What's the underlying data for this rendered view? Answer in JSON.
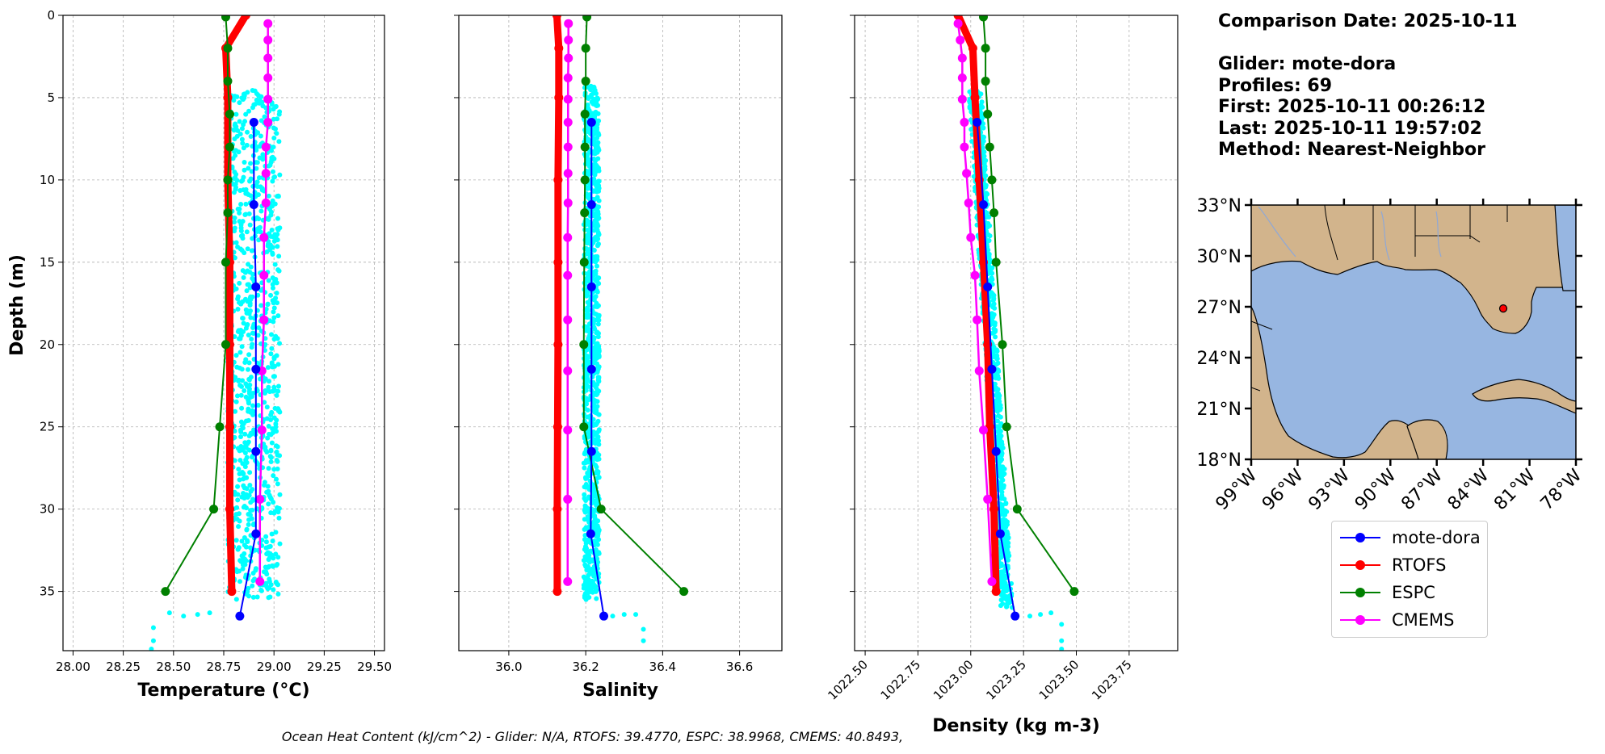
{
  "info": {
    "comparison_date": "Comparison Date: 2025-10-11",
    "glider": "Glider: mote-dora",
    "profiles": "Profiles: 69",
    "first": "First: 2025-10-11 00:26:12",
    "last": "Last: 2025-10-11 19:57:02",
    "method": "Method: Nearest-Neighbor"
  },
  "footer_text": "Ocean Heat Content (kJ/cm^2) - Glider: N/A,  RTOFS: 39.4770,  ESPC: 38.9968,  CMEMS: 40.8493,",
  "colors": {
    "glider": "#0000ff",
    "rtofs": "#ff0000",
    "espc": "#008000",
    "cmems": "#ff00ff",
    "scatter": "#00ffff",
    "land": "#d2b48c",
    "ocean": "#97b6e1"
  },
  "legend": [
    {
      "label": "mote-dora",
      "color": "#0000ff"
    },
    {
      "label": "RTOFS",
      "color": "#ff0000"
    },
    {
      "label": "ESPC",
      "color": "#008000"
    },
    {
      "label": "CMEMS",
      "color": "#ff00ff"
    }
  ],
  "chart_data": [
    {
      "type": "line",
      "xlabel": "Temperature (°C)",
      "ylabel": "Depth (m)",
      "xlim": [
        27.95,
        29.55
      ],
      "ylim": [
        38.6,
        0
      ],
      "xticks": [
        "28.00",
        "28.25",
        "28.50",
        "28.75",
        "29.00",
        "29.25",
        "29.50"
      ],
      "yticks": [
        "0",
        "5",
        "10",
        "15",
        "20",
        "25",
        "30",
        "35"
      ],
      "grid": true,
      "scatter": {
        "name": "mote-dora (raw)",
        "depth_range": [
          4.5,
          35.5
        ],
        "x_range": [
          28.77,
          29.03
        ],
        "tail": [
          [
            28.4,
            37.2
          ],
          [
            28.4,
            38.0
          ],
          [
            28.39,
            38.5
          ],
          [
            28.48,
            36.3
          ],
          [
            28.55,
            36.5
          ],
          [
            28.62,
            36.4
          ],
          [
            28.68,
            36.3
          ]
        ]
      },
      "series": [
        {
          "name": "mote-dora",
          "points": [
            [
              28.9,
              6.5
            ],
            [
              28.9,
              11.5
            ],
            [
              28.91,
              16.5
            ],
            [
              28.91,
              21.5
            ],
            [
              28.91,
              26.5
            ],
            [
              28.91,
              31.5
            ],
            [
              28.83,
              36.5
            ]
          ]
        },
        {
          "name": "RTOFS",
          "points": [
            [
              28.86,
              0.0
            ],
            [
              28.76,
              2.0
            ],
            [
              28.77,
              5.0
            ],
            [
              28.77,
              10.0
            ],
            [
              28.78,
              15.0
            ],
            [
              28.78,
              20.0
            ],
            [
              28.78,
              25.0
            ],
            [
              28.78,
              30.0
            ],
            [
              28.79,
              35.0
            ]
          ]
        },
        {
          "name": "ESPC",
          "points": [
            [
              28.76,
              0.1
            ],
            [
              28.77,
              2.0
            ],
            [
              28.77,
              4.0
            ],
            [
              28.78,
              6.0
            ],
            [
              28.78,
              8.0
            ],
            [
              28.77,
              10.0
            ],
            [
              28.77,
              12.0
            ],
            [
              28.76,
              15.0
            ],
            [
              28.76,
              20.0
            ],
            [
              28.73,
              25.0
            ],
            [
              28.7,
              30.0
            ],
            [
              28.46,
              35.0
            ]
          ]
        },
        {
          "name": "CMEMS",
          "points": [
            [
              28.97,
              0.5
            ],
            [
              28.97,
              1.5
            ],
            [
              28.97,
              2.6
            ],
            [
              28.97,
              3.8
            ],
            [
              28.97,
              5.1
            ],
            [
              28.97,
              6.5
            ],
            [
              28.96,
              8.0
            ],
            [
              28.96,
              9.6
            ],
            [
              28.96,
              11.4
            ],
            [
              28.95,
              13.5
            ],
            [
              28.95,
              15.8
            ],
            [
              28.95,
              18.5
            ],
            [
              28.94,
              21.6
            ],
            [
              28.94,
              25.2
            ],
            [
              28.93,
              29.4
            ],
            [
              28.93,
              34.4
            ]
          ]
        }
      ]
    },
    {
      "type": "line",
      "xlabel": "Salinity",
      "ylabel": "",
      "xlim": [
        35.87,
        36.71
      ],
      "ylim": [
        38.6,
        0
      ],
      "xticks": [
        "36.0",
        "36.2",
        "36.4",
        "36.6"
      ],
      "yticks": [
        "0",
        "5",
        "10",
        "15",
        "20",
        "25",
        "30",
        "35"
      ],
      "grid": true,
      "scatter": {
        "name": "mote-dora (raw)",
        "depth_range": [
          4.3,
          35.5
        ],
        "x_range": [
          36.195,
          36.235
        ],
        "tail": [
          [
            36.33,
            36.4
          ],
          [
            36.35,
            37.3
          ],
          [
            36.35,
            38.0
          ],
          [
            36.27,
            36.5
          ],
          [
            36.3,
            36.4
          ]
        ]
      },
      "series": [
        {
          "name": "mote-dora",
          "points": [
            [
              36.215,
              6.5
            ],
            [
              36.215,
              11.5
            ],
            [
              36.215,
              16.5
            ],
            [
              36.215,
              21.5
            ],
            [
              36.215,
              26.5
            ],
            [
              36.213,
              31.5
            ],
            [
              36.247,
              36.5
            ]
          ]
        },
        {
          "name": "RTOFS",
          "points": [
            [
              36.125,
              0.0
            ],
            [
              36.13,
              2.0
            ],
            [
              36.13,
              5.0
            ],
            [
              36.128,
              10.0
            ],
            [
              36.128,
              15.0
            ],
            [
              36.128,
              20.0
            ],
            [
              36.127,
              25.0
            ],
            [
              36.126,
              30.0
            ],
            [
              36.126,
              35.0
            ]
          ]
        },
        {
          "name": "ESPC",
          "points": [
            [
              36.203,
              0.1
            ],
            [
              36.2,
              2.0
            ],
            [
              36.2,
              4.0
            ],
            [
              36.198,
              6.0
            ],
            [
              36.198,
              8.0
            ],
            [
              36.198,
              10.0
            ],
            [
              36.197,
              12.0
            ],
            [
              36.196,
              15.0
            ],
            [
              36.195,
              20.0
            ],
            [
              36.195,
              25.0
            ],
            [
              36.24,
              30.0
            ],
            [
              36.455,
              35.0
            ]
          ]
        },
        {
          "name": "CMEMS",
          "points": [
            [
              36.155,
              0.5
            ],
            [
              36.155,
              1.5
            ],
            [
              36.155,
              2.6
            ],
            [
              36.154,
              3.8
            ],
            [
              36.154,
              5.1
            ],
            [
              36.154,
              6.5
            ],
            [
              36.154,
              8.0
            ],
            [
              36.154,
              9.6
            ],
            [
              36.154,
              11.4
            ],
            [
              36.153,
              13.5
            ],
            [
              36.153,
              15.8
            ],
            [
              36.153,
              18.5
            ],
            [
              36.153,
              21.6
            ],
            [
              36.153,
              25.2
            ],
            [
              36.153,
              29.4
            ],
            [
              36.153,
              34.4
            ]
          ]
        }
      ]
    },
    {
      "type": "line",
      "xlabel": "Density (kg m-3)",
      "ylabel": "",
      "xlim": [
        1022.45,
        1023.98
      ],
      "ylim": [
        38.6,
        0
      ],
      "xticks": [
        "1022.50",
        "1022.75",
        "1023.00",
        "1023.25",
        "1023.50",
        "1023.75"
      ],
      "yticks": [
        "0",
        "5",
        "10",
        "15",
        "20",
        "25",
        "30",
        "35"
      ],
      "grid": true,
      "scatter": {
        "name": "mote-dora (raw)",
        "depth_range": [
          4.5,
          36.0
        ],
        "x_range_top": [
          1022.99,
          1023.05
        ],
        "x_range_bottom": [
          1023.14,
          1023.2
        ],
        "tail": [
          [
            1023.43,
            37.0
          ],
          [
            1023.43,
            38.0
          ],
          [
            1023.43,
            38.5
          ],
          [
            1023.28,
            36.5
          ],
          [
            1023.33,
            36.4
          ],
          [
            1023.38,
            36.3
          ]
        ]
      },
      "series": [
        {
          "name": "mote-dora",
          "points": [
            [
              1023.03,
              6.5
            ],
            [
              1023.06,
              11.5
            ],
            [
              1023.08,
              16.5
            ],
            [
              1023.1,
              21.5
            ],
            [
              1023.12,
              26.5
            ],
            [
              1023.14,
              31.5
            ],
            [
              1023.21,
              36.5
            ]
          ]
        },
        {
          "name": "RTOFS",
          "points": [
            [
              1022.94,
              0.0
            ],
            [
              1023.01,
              2.0
            ],
            [
              1023.02,
              5.0
            ],
            [
              1023.04,
              10.0
            ],
            [
              1023.06,
              15.0
            ],
            [
              1023.08,
              20.0
            ],
            [
              1023.09,
              25.0
            ],
            [
              1023.11,
              30.0
            ],
            [
              1023.12,
              35.0
            ]
          ]
        },
        {
          "name": "ESPC",
          "points": [
            [
              1023.06,
              0.1
            ],
            [
              1023.07,
              2.0
            ],
            [
              1023.07,
              4.0
            ],
            [
              1023.08,
              6.0
            ],
            [
              1023.09,
              8.0
            ],
            [
              1023.1,
              10.0
            ],
            [
              1023.11,
              12.0
            ],
            [
              1023.12,
              15.0
            ],
            [
              1023.15,
              20.0
            ],
            [
              1023.17,
              25.0
            ],
            [
              1023.22,
              30.0
            ],
            [
              1023.49,
              35.0
            ]
          ]
        },
        {
          "name": "CMEMS",
          "points": [
            [
              1022.94,
              0.5
            ],
            [
              1022.95,
              1.5
            ],
            [
              1022.96,
              2.6
            ],
            [
              1022.96,
              3.8
            ],
            [
              1022.96,
              5.1
            ],
            [
              1022.97,
              6.5
            ],
            [
              1022.97,
              8.0
            ],
            [
              1022.98,
              9.6
            ],
            [
              1022.99,
              11.4
            ],
            [
              1023.0,
              13.5
            ],
            [
              1023.02,
              15.8
            ],
            [
              1023.03,
              18.5
            ],
            [
              1023.04,
              21.6
            ],
            [
              1023.06,
              25.2
            ],
            [
              1023.08,
              29.4
            ],
            [
              1023.1,
              34.4
            ]
          ]
        }
      ]
    },
    {
      "type": "map",
      "lat_ticks": [
        "33°N",
        "30°N",
        "27°N",
        "24°N",
        "21°N",
        "18°N"
      ],
      "lon_ticks": [
        "99°W",
        "96°W",
        "93°W",
        "90°W",
        "87°W",
        "84°W",
        "81°W",
        "78°W"
      ],
      "lat_range": [
        18,
        33
      ],
      "lon_range": [
        -99,
        -78
      ],
      "glider_position": {
        "lat": 26.9,
        "lon": -82.7
      }
    }
  ]
}
